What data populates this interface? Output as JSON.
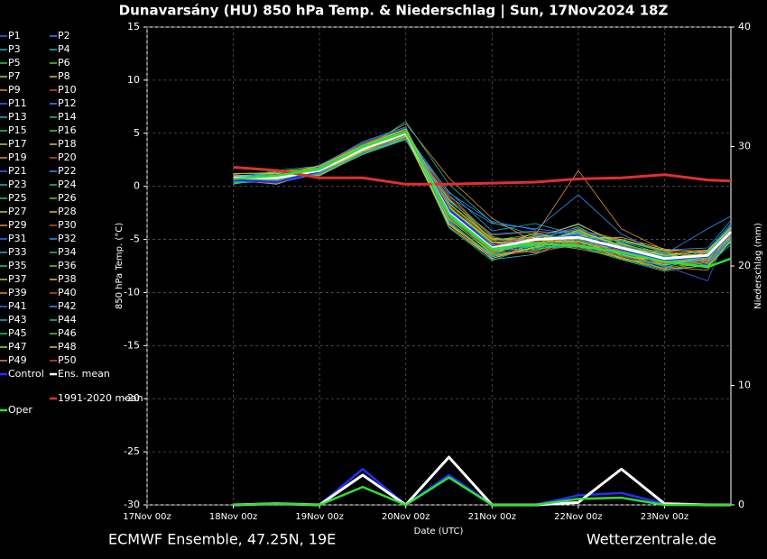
{
  "chart_data": {
    "type": "line",
    "title": "Dunavarsány  (HU)  850 hPa Temp. & Niederschlag | Sun, 17Nov2024 18Z",
    "ylabel": "850 hPa Temp. (°C)",
    "y2label": "Niederschlag (mm)",
    "xlabel": "Date (UTC)",
    "footer_left": "ECMWF Ensemble, 47.25N, 19E",
    "footer_right": "Wetterzentrale.de",
    "x": [
      1,
      1.5,
      2,
      2.5,
      3,
      3.5,
      4,
      4.5,
      5,
      5.5,
      6,
      6.5,
      6.77
    ],
    "xlim": [
      0,
      6.77
    ],
    "xticks": [
      {
        "value": 0,
        "label": "17Nov 00z"
      },
      {
        "value": 1,
        "label": "18Nov 00z"
      },
      {
        "value": 2,
        "label": "19Nov 00z"
      },
      {
        "value": 3,
        "label": "20Nov 00z"
      },
      {
        "value": 4,
        "label": "21Nov 00z"
      },
      {
        "value": 5,
        "label": "22Nov 00z"
      },
      {
        "value": 6,
        "label": "23Nov 00z"
      }
    ],
    "ylim": [
      -30,
      15
    ],
    "yticks": [
      -30,
      -25,
      -20,
      -15,
      -10,
      -5,
      0,
      5,
      10,
      15
    ],
    "y2lim": [
      0,
      40
    ],
    "y2ticks": [
      0,
      10,
      20,
      30,
      40
    ],
    "grid": true,
    "series": [
      {
        "name": "P1",
        "color": "#4060ff",
        "values": [
          0.5,
          1.2,
          1.0,
          3.0,
          4.8,
          -1.5,
          -5.5,
          -5.5,
          -4.0,
          -6.0,
          -7.2,
          -7.0,
          -3.8
        ]
      },
      {
        "name": "P2",
        "color": "#3090ff",
        "values": [
          0.9,
          0.4,
          1.8,
          3.8,
          5.1,
          -3.0,
          -6.0,
          -4.6,
          -5.2,
          -5.4,
          -6.5,
          -6.8,
          -4.9
        ]
      },
      {
        "name": "P3",
        "color": "#20b0d0",
        "values": [
          1.1,
          0.6,
          1.3,
          3.4,
          4.6,
          -0.5,
          -4.2,
          -3.5,
          -4.6,
          -6.3,
          -7.8,
          -6.0,
          -3.5
        ]
      },
      {
        "name": "P4",
        "color": "#20c0a0",
        "values": [
          0.7,
          1.5,
          1.9,
          3.9,
          5.3,
          -3.5,
          -6.5,
          -5.8,
          -5.0,
          -5.1,
          -6.2,
          -7.5,
          -5.2
        ]
      },
      {
        "name": "P5",
        "color": "#20d060",
        "values": [
          0.3,
          0.9,
          1.2,
          3.2,
          4.9,
          -2.0,
          -5.2,
          -6.2,
          -4.4,
          -6.6,
          -7.0,
          -6.1,
          -4.0
        ]
      },
      {
        "name": "P6",
        "color": "#60d020",
        "values": [
          1.0,
          0.2,
          1.6,
          3.6,
          5.0,
          -2.8,
          -6.3,
          -5.1,
          -3.8,
          -5.9,
          -6.4,
          -7.2,
          -4.6
        ]
      },
      {
        "name": "P7",
        "color": "#c0d020",
        "values": [
          0.6,
          1.0,
          1.4,
          3.1,
          4.4,
          -1.2,
          -5.0,
          -4.8,
          -5.6,
          -6.8,
          -7.4,
          -6.6,
          -3.9
        ]
      },
      {
        "name": "P8",
        "color": "#e0c040",
        "values": [
          0.8,
          0.7,
          2.0,
          4.0,
          5.4,
          -3.8,
          -6.8,
          -5.4,
          -4.9,
          -4.8,
          -5.9,
          -6.3,
          -4.4
        ]
      },
      {
        "name": "P9",
        "color": "#e09030",
        "values": [
          1.2,
          1.3,
          1.1,
          3.3,
          4.7,
          -0.8,
          -4.8,
          -6.0,
          -5.3,
          -6.1,
          -7.6,
          -7.9,
          -5.0
        ]
      },
      {
        "name": "P10",
        "color": "#d05020",
        "values": [
          0.4,
          0.5,
          1.7,
          3.7,
          5.2,
          -2.2,
          -5.6,
          -4.4,
          -4.2,
          -5.6,
          -6.9,
          -6.4,
          -4.1
        ]
      },
      {
        "name": "P11",
        "color": "#4060ff",
        "values": [
          0.9,
          1.1,
          1.5,
          3.5,
          4.9,
          -2.6,
          -6.1,
          -5.2,
          -5.8,
          -6.4,
          -7.1,
          -6.9,
          -4.7
        ]
      },
      {
        "name": "P12",
        "color": "#3090ff",
        "values": [
          0.6,
          0.3,
          1.2,
          3.0,
          4.5,
          -1.0,
          -3.5,
          -4.0,
          -4.5,
          -5.2,
          -6.0,
          -5.8,
          -3.2
        ]
      },
      {
        "name": "P13",
        "color": "#20b0d0",
        "values": [
          1.0,
          0.8,
          1.9,
          4.2,
          5.6,
          -3.2,
          -6.9,
          -6.4,
          -5.1,
          -6.9,
          -8.0,
          -7.4,
          -5.5
        ]
      },
      {
        "name": "P14",
        "color": "#20c0a0",
        "values": [
          0.5,
          1.4,
          1.3,
          3.4,
          4.8,
          -2.4,
          -5.4,
          -4.9,
          -3.5,
          -5.7,
          -6.6,
          -7.0,
          -4.3
        ]
      },
      {
        "name": "P15",
        "color": "#20d060",
        "values": [
          0.8,
          0.6,
          1.6,
          3.6,
          5.0,
          -1.8,
          -5.9,
          -5.7,
          -4.8,
          -6.2,
          -7.3,
          -6.2,
          -3.7
        ]
      },
      {
        "name": "P16",
        "color": "#60d020",
        "values": [
          0.2,
          0.9,
          1.4,
          3.2,
          4.6,
          -3.6,
          -6.4,
          -5.0,
          -5.5,
          -5.3,
          -6.8,
          -7.6,
          -5.1
        ]
      },
      {
        "name": "P17",
        "color": "#c0d020",
        "values": [
          1.1,
          0.4,
          1.8,
          3.9,
          5.3,
          -2.1,
          -5.3,
          -5.6,
          -4.3,
          -6.5,
          -7.1,
          -6.7,
          -4.2
        ]
      },
      {
        "name": "P18",
        "color": "#e0c040",
        "values": [
          0.7,
          1.2,
          1.0,
          3.1,
          4.5,
          -2.9,
          -6.2,
          -4.7,
          -4.7,
          -5.8,
          -6.3,
          -6.5,
          -4.8
        ]
      },
      {
        "name": "P19",
        "color": "#e09030",
        "values": [
          0.9,
          0.7,
          1.7,
          3.7,
          5.9,
          0.8,
          -3.0,
          -5.3,
          -5.9,
          -6.7,
          -7.7,
          -7.1,
          -3.6
        ]
      },
      {
        "name": "P20",
        "color": "#d05020",
        "values": [
          0.4,
          1.0,
          1.5,
          3.5,
          5.1,
          -3.3,
          -6.6,
          -6.1,
          -4.1,
          -5.0,
          -6.1,
          -6.0,
          -4.5
        ]
      },
      {
        "name": "P21",
        "color": "#4060ff",
        "values": [
          0.6,
          0.5,
          1.3,
          3.3,
          4.7,
          -2.5,
          -5.7,
          -5.3,
          -5.0,
          -6.0,
          -7.0,
          -6.8,
          -4.0
        ]
      },
      {
        "name": "P22",
        "color": "#3090ff",
        "values": [
          1.0,
          1.1,
          1.9,
          3.8,
          5.2,
          -1.4,
          -4.5,
          -4.2,
          -4.6,
          -5.5,
          -6.7,
          -7.3,
          -4.6
        ]
      },
      {
        "name": "P23",
        "color": "#20b0d0",
        "values": [
          0.3,
          0.8,
          1.2,
          3.0,
          4.4,
          -2.7,
          -6.0,
          -5.9,
          -5.4,
          -6.6,
          -7.5,
          -6.4,
          -3.9
        ]
      },
      {
        "name": "P24",
        "color": "#20c0a0",
        "values": [
          0.8,
          0.2,
          1.6,
          3.6,
          5.0,
          -3.9,
          -7.0,
          -5.5,
          -4.4,
          -5.2,
          -6.4,
          -7.0,
          -5.3
        ]
      },
      {
        "name": "P25",
        "color": "#20d060",
        "values": [
          1.2,
          1.3,
          1.4,
          3.4,
          4.8,
          -2.0,
          -5.1,
          -4.5,
          -5.7,
          -6.3,
          -7.2,
          -6.6,
          -4.4
        ]
      },
      {
        "name": "P26",
        "color": "#60d020",
        "values": [
          0.5,
          0.6,
          1.8,
          3.9,
          5.4,
          -2.3,
          -5.8,
          -5.6,
          -4.2,
          -5.7,
          -6.8,
          -7.7,
          -4.9
        ]
      },
      {
        "name": "P27",
        "color": "#c0d020",
        "values": [
          0.7,
          1.0,
          1.1,
          3.2,
          4.6,
          -1.6,
          -4.9,
          -5.1,
          -5.2,
          -6.2,
          -7.3,
          -6.2,
          -3.8
        ]
      },
      {
        "name": "P28",
        "color": "#e0c040",
        "values": [
          0.9,
          0.4,
          1.7,
          3.7,
          5.1,
          -3.1,
          -6.3,
          -4.8,
          -3.6,
          -5.4,
          -6.5,
          -6.9,
          -4.7
        ]
      },
      {
        "name": "P29",
        "color": "#e09030",
        "values": [
          0.4,
          1.1,
          1.5,
          3.5,
          4.9,
          -2.6,
          -5.5,
          -6.3,
          -4.9,
          -6.8,
          -7.9,
          -7.1,
          -4.1
        ]
      },
      {
        "name": "P30",
        "color": "#d05020",
        "values": [
          1.1,
          0.7,
          1.3,
          3.3,
          4.7,
          -1.1,
          -4.6,
          -4.3,
          -5.3,
          -5.6,
          -6.2,
          -6.3,
          -4.5
        ]
      },
      {
        "name": "P31",
        "color": "#4060ff",
        "values": [
          0.6,
          0.9,
          2.0,
          4.1,
          5.5,
          -3.4,
          -6.7,
          -5.2,
          -4.5,
          -6.1,
          -7.0,
          -7.4,
          -5.0
        ]
      },
      {
        "name": "P32",
        "color": "#3090ff",
        "values": [
          0.8,
          0.3,
          1.2,
          3.1,
          4.5,
          -2.2,
          -5.6,
          -5.7,
          -5.6,
          -6.4,
          -7.6,
          -6.7,
          -4.3
        ]
      },
      {
        "name": "P33",
        "color": "#20b0d0",
        "values": [
          1.0,
          1.2,
          1.6,
          3.6,
          5.0,
          -2.8,
          -6.0,
          -4.9,
          -4.0,
          -5.3,
          -6.6,
          -6.1,
          -3.7
        ]
      },
      {
        "name": "P34",
        "color": "#20c0a0",
        "values": [
          0.3,
          0.5,
          1.4,
          3.4,
          6.1,
          0.2,
          -3.4,
          -4.6,
          -4.8,
          -5.9,
          -7.1,
          -7.2,
          -4.8
        ]
      },
      {
        "name": "P35",
        "color": "#20d060",
        "values": [
          0.7,
          1.0,
          1.8,
          3.8,
          5.2,
          -3.0,
          -6.4,
          -6.0,
          -5.1,
          -6.5,
          -7.4,
          -6.5,
          -4.2
        ]
      },
      {
        "name": "P36",
        "color": "#60d020",
        "values": [
          0.9,
          0.6,
          1.1,
          3.0,
          4.6,
          -1.9,
          -5.2,
          -5.4,
          -4.3,
          -5.5,
          -6.3,
          -6.8,
          -4.6
        ]
      },
      {
        "name": "P37",
        "color": "#c0d020",
        "values": [
          0.5,
          1.4,
          1.7,
          3.7,
          5.1,
          -2.4,
          -5.8,
          -4.4,
          -5.4,
          -6.7,
          -7.8,
          -7.5,
          -5.1
        ]
      },
      {
        "name": "P38",
        "color": "#e0c040",
        "values": [
          1.1,
          0.8,
          1.3,
          3.3,
          4.8,
          -3.5,
          -6.6,
          -5.8,
          -4.6,
          -5.0,
          -6.0,
          -6.2,
          -3.9
        ]
      },
      {
        "name": "P39",
        "color": "#e09030",
        "values": [
          0.6,
          0.2,
          1.5,
          3.5,
          4.9,
          -1.7,
          -5.0,
          -5.1,
          -5.0,
          -6.2,
          -7.2,
          -7.0,
          -4.4
        ]
      },
      {
        "name": "P40",
        "color": "#d05020",
        "values": [
          0.8,
          1.1,
          1.9,
          4.0,
          5.3,
          -2.9,
          -6.2,
          -6.2,
          -5.5,
          -6.0,
          -6.9,
          -6.4,
          -4.7
        ]
      },
      {
        "name": "P41",
        "color": "#4060ff",
        "values": [
          0.4,
          0.7,
          1.2,
          3.1,
          4.7,
          -2.1,
          -5.4,
          -4.7,
          -3.9,
          -5.8,
          -7.5,
          -8.9,
          -3.6
        ]
      },
      {
        "name": "P42",
        "color": "#3090ff",
        "values": [
          1.0,
          0.9,
          1.6,
          3.6,
          5.0,
          -0.6,
          -3.3,
          -4.1,
          -0.8,
          -4.5,
          -6.4,
          -4.0,
          -2.8
        ]
      },
      {
        "name": "P43",
        "color": "#20b0d0",
        "values": [
          0.6,
          1.3,
          1.4,
          3.4,
          4.8,
          -2.6,
          -5.9,
          -5.5,
          -5.0,
          -6.3,
          -7.0,
          -6.9,
          -4.3
        ]
      },
      {
        "name": "P44",
        "color": "#20c0a0",
        "values": [
          0.9,
          0.4,
          1.8,
          3.9,
          5.2,
          -3.3,
          -6.5,
          -5.0,
          -4.4,
          -5.6,
          -6.7,
          -7.3,
          -4.9
        ]
      },
      {
        "name": "P45",
        "color": "#20d060",
        "values": [
          0.3,
          1.0,
          1.1,
          3.2,
          4.5,
          -1.3,
          -4.7,
          -5.8,
          -5.7,
          -6.9,
          -7.7,
          -6.3,
          -3.8
        ]
      },
      {
        "name": "P46",
        "color": "#60d020",
        "values": [
          0.7,
          0.6,
          1.5,
          3.5,
          5.0,
          -2.7,
          -6.1,
          -4.9,
          -4.7,
          -5.1,
          -6.1,
          -7.6,
          -5.2
        ]
      },
      {
        "name": "P47",
        "color": "#c0d020",
        "values": [
          1.2,
          1.2,
          1.9,
          3.8,
          5.4,
          -2.0,
          -5.3,
          -5.3,
          -5.2,
          -6.4,
          -7.4,
          -6.6,
          -4.5
        ]
      },
      {
        "name": "P48",
        "color": "#e0c040",
        "values": [
          0.5,
          0.5,
          1.3,
          3.3,
          4.7,
          -3.6,
          -6.8,
          -5.7,
          -4.1,
          -5.7,
          -6.5,
          -6.0,
          -4.0
        ]
      },
      {
        "name": "P49",
        "color": "#e09030",
        "values": [
          0.8,
          0.9,
          1.7,
          3.7,
          5.1,
          -2.3,
          -5.7,
          -4.6,
          1.5,
          -4.0,
          -6.0,
          -7.0,
          -4.6
        ]
      },
      {
        "name": "P50",
        "color": "#d05020",
        "values": [
          1.0,
          0.3,
          1.4,
          3.4,
          4.6,
          -1.7,
          -5.1,
          -5.2,
          -5.4,
          -6.6,
          -7.3,
          -7.2,
          -4.1
        ]
      },
      {
        "name": "Control",
        "color": "#2030ff",
        "values": [
          0.6,
          0.4,
          1.4,
          3.6,
          5.0,
          -2.2,
          -5.7,
          -5.0,
          -4.7,
          -5.9,
          -6.9,
          -6.6,
          -4.4
        ],
        "precip": [
          0,
          0.1,
          0,
          3,
          0,
          2.5,
          0,
          0,
          0.8,
          1,
          0.1,
          0,
          0
        ]
      },
      {
        "name": "Ens. mean",
        "color": "#ffffff",
        "values": [
          0.8,
          0.8,
          1.5,
          3.5,
          5.0,
          -2.5,
          -5.8,
          -5.0,
          -4.8,
          -5.8,
          -6.8,
          -6.5,
          -4.3
        ],
        "precip": [
          0,
          0.1,
          0,
          2.5,
          0,
          4,
          0,
          0,
          0.2,
          3,
          0.1,
          0,
          0
        ]
      },
      {
        "name": "1991-2020 mean",
        "color": "#e03030",
        "values": [
          1.8,
          1.5,
          0.8,
          0.8,
          0.2,
          0.2,
          0.3,
          0.4,
          0.7,
          0.8,
          1.1,
          0.6,
          0.5
        ]
      },
      {
        "name": "Oper",
        "color": "#30e030",
        "values": [
          0.7,
          1.0,
          1.6,
          3.7,
          5.1,
          -2.6,
          -5.9,
          -5.4,
          -5.6,
          -6.2,
          -7.1,
          -7.6,
          -6.8
        ],
        "precip": [
          0,
          0.1,
          0,
          1.5,
          0,
          2.3,
          0,
          0,
          0.5,
          0.6,
          0,
          0,
          0
        ]
      }
    ]
  }
}
